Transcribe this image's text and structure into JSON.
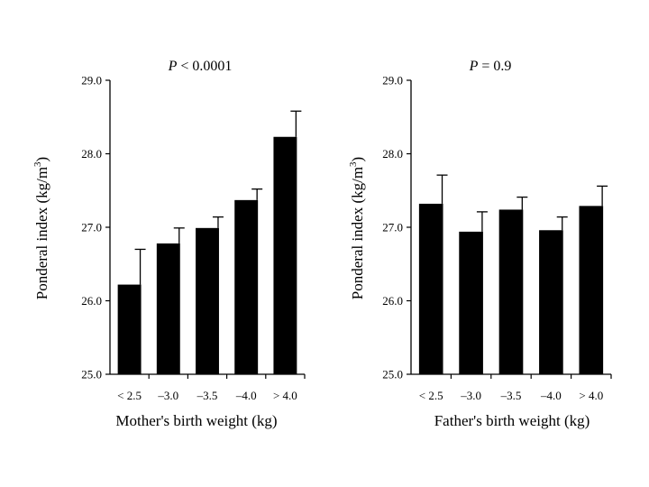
{
  "chart_data": [
    {
      "type": "bar",
      "title_italic": "P",
      "title_rest": " < 0.0001",
      "xlabel": "Mother's birth weight (kg)",
      "ylabel_main": "Ponderal index (kg/m",
      "ylabel_sup": "3",
      "ylabel_end": ")",
      "categories": [
        "< 2.5",
        "–3.0",
        "–3.5",
        "–4.0",
        "> 4.0"
      ],
      "values": [
        26.22,
        26.78,
        26.99,
        27.37,
        28.23
      ],
      "error_upper": [
        26.7,
        26.99,
        27.14,
        27.52,
        28.58
      ],
      "yticks": [
        "29.0",
        "28.0",
        "27.0",
        "26.0",
        "25.0"
      ],
      "ylim": [
        25,
        29
      ],
      "bar_color": "#000000",
      "grid": false
    },
    {
      "type": "bar",
      "title_italic": "P",
      "title_rest": " = 0.9",
      "xlabel": "Father's birth weight (kg)",
      "ylabel_main": "Ponderal index (kg/m",
      "ylabel_sup": "3",
      "ylabel_end": ")",
      "categories": [
        "< 2.5",
        "–3.0",
        "–3.5",
        "–4.0",
        "> 4.0"
      ],
      "values": [
        27.32,
        26.94,
        27.24,
        26.96,
        27.29
      ],
      "error_upper": [
        27.71,
        27.21,
        27.41,
        27.14,
        27.56
      ],
      "yticks": [
        "29.0",
        "28.0",
        "27.0",
        "26.0",
        "25.0"
      ],
      "ylim": [
        25,
        29
      ],
      "bar_color": "#000000",
      "grid": false
    }
  ]
}
